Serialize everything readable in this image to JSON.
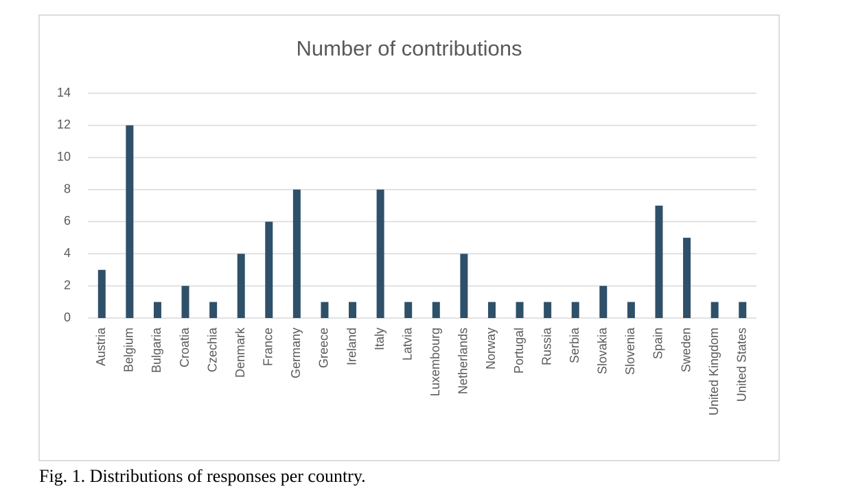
{
  "chart_data": {
    "type": "bar",
    "title": "Number of contributions",
    "categories": [
      "Austria",
      "Belgium",
      "Bulgaria",
      "Croatia",
      "Czechia",
      "Denmark",
      "France",
      "Germany",
      "Greece",
      "Ireland",
      "Italy",
      "Latvia",
      "Luxembourg",
      "Netherlands",
      "Norway",
      "Portugal",
      "Russia",
      "Serbia",
      "Slovakia",
      "Slovenia",
      "Spain",
      "Sweden",
      "United Kingdom",
      "United States"
    ],
    "values": [
      3,
      12,
      1,
      2,
      1,
      4,
      6,
      8,
      1,
      1,
      8,
      1,
      1,
      4,
      1,
      1,
      1,
      1,
      2,
      1,
      7,
      5,
      1,
      1
    ],
    "color": "#2f5069",
    "ylim": [
      0,
      14
    ],
    "yticks": [
      0,
      2,
      4,
      6,
      8,
      10,
      12,
      14
    ],
    "grid": true
  },
  "caption": "Fig. 1. Distributions of responses per country."
}
